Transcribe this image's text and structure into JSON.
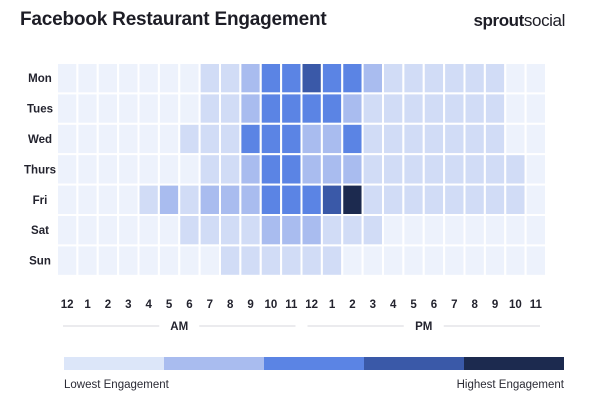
{
  "header": {
    "title": "Facebook Restaurant Engagement",
    "brand_bold": "sprout",
    "brand_light": "social"
  },
  "chart_data": {
    "type": "heatmap",
    "title": "Facebook Restaurant Engagement",
    "rows": [
      "Mon",
      "Tues",
      "Wed",
      "Thurs",
      "Fri",
      "Sat",
      "Sun"
    ],
    "columns": [
      "12",
      "1",
      "2",
      "3",
      "4",
      "5",
      "6",
      "7",
      "8",
      "9",
      "10",
      "11",
      "12",
      "1",
      "2",
      "3",
      "4",
      "5",
      "6",
      "7",
      "8",
      "9",
      "10",
      "11"
    ],
    "period_labels": [
      "AM",
      "PM"
    ],
    "scale_levels": 6,
    "values": [
      [
        0,
        0,
        0,
        0,
        0,
        0,
        0,
        1,
        1,
        2,
        3,
        3,
        4,
        3,
        3,
        2,
        1,
        1,
        1,
        1,
        1,
        1,
        0,
        0
      ],
      [
        0,
        0,
        0,
        0,
        0,
        0,
        0,
        1,
        1,
        2,
        3,
        3,
        3,
        3,
        2,
        1,
        1,
        1,
        1,
        1,
        1,
        1,
        0,
        0
      ],
      [
        0,
        0,
        0,
        0,
        0,
        0,
        1,
        1,
        1,
        3,
        3,
        3,
        2,
        2,
        3,
        1,
        1,
        1,
        1,
        1,
        1,
        1,
        0,
        0
      ],
      [
        0,
        0,
        0,
        0,
        0,
        0,
        0,
        1,
        1,
        2,
        3,
        3,
        2,
        2,
        2,
        1,
        1,
        1,
        1,
        1,
        1,
        1,
        1,
        0
      ],
      [
        0,
        0,
        0,
        0,
        1,
        2,
        1,
        2,
        2,
        2,
        3,
        3,
        3,
        4,
        5,
        1,
        1,
        1,
        1,
        1,
        1,
        1,
        1,
        0
      ],
      [
        0,
        0,
        0,
        0,
        0,
        0,
        1,
        1,
        1,
        1,
        2,
        2,
        2,
        1,
        1,
        1,
        0,
        0,
        0,
        0,
        0,
        0,
        0,
        0
      ],
      [
        0,
        0,
        0,
        0,
        0,
        0,
        0,
        0,
        1,
        1,
        1,
        1,
        1,
        1,
        0,
        0,
        0,
        0,
        0,
        0,
        0,
        0,
        0,
        0
      ]
    ],
    "palette": [
      "#edf2fc",
      "#d1dcf6",
      "#a9bcef",
      "#5b84e4",
      "#3a59a8",
      "#1c2a4f"
    ],
    "legend": {
      "colors": [
        "#dce6f9",
        "#a9bcef",
        "#5b84e4",
        "#3a59a8",
        "#1c2a4f"
      ],
      "low_label": "Lowest Engagement",
      "high_label": "Highest Engagement"
    }
  }
}
